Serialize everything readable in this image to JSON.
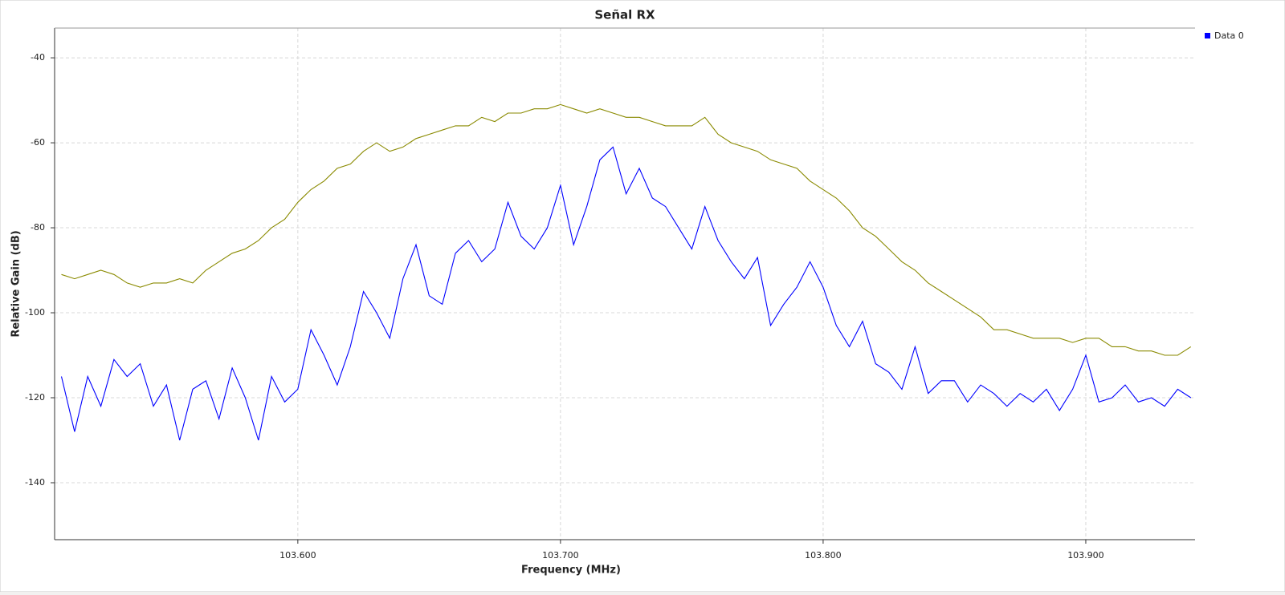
{
  "chart_data": {
    "type": "line",
    "title": "Señal RX",
    "x_label": "Frequency (MHz)",
    "y_label": "Relative Gain (dB)",
    "x": [
      103.51,
      103.515,
      103.52,
      103.525,
      103.53,
      103.535,
      103.54,
      103.545,
      103.55,
      103.555,
      103.56,
      103.565,
      103.57,
      103.575,
      103.58,
      103.585,
      103.59,
      103.595,
      103.6,
      103.605,
      103.61,
      103.615,
      103.62,
      103.625,
      103.63,
      103.635,
      103.64,
      103.645,
      103.65,
      103.655,
      103.66,
      103.665,
      103.67,
      103.675,
      103.68,
      103.685,
      103.69,
      103.695,
      103.7,
      103.705,
      103.71,
      103.715,
      103.72,
      103.725,
      103.73,
      103.735,
      103.74,
      103.745,
      103.75,
      103.755,
      103.76,
      103.765,
      103.77,
      103.775,
      103.78,
      103.785,
      103.79,
      103.795,
      103.8,
      103.805,
      103.81,
      103.815,
      103.82,
      103.825,
      103.83,
      103.835,
      103.84,
      103.845,
      103.85,
      103.855,
      103.86,
      103.865,
      103.87,
      103.875,
      103.88,
      103.885,
      103.89,
      103.895,
      103.9,
      103.905,
      103.91,
      103.915,
      103.92,
      103.925,
      103.93,
      103.935,
      103.94
    ],
    "series": [
      {
        "name": "Data 0",
        "color": "#0000ff",
        "values": [
          -115,
          -128,
          -115,
          -122,
          -111,
          -115,
          -112,
          -122,
          -117,
          -130,
          -118,
          -116,
          -125,
          -113,
          -120,
          -130,
          -115,
          -121,
          -118,
          -104,
          -110,
          -117,
          -108,
          -95,
          -100,
          -106,
          -92,
          -84,
          -96,
          -98,
          -86,
          -83,
          -88,
          -85,
          -74,
          -82,
          -85,
          -80,
          -70,
          -84,
          -75,
          -64,
          -61,
          -72,
          -66,
          -73,
          -75,
          -80,
          -85,
          -75,
          -83,
          -88,
          -92,
          -87,
          -103,
          -98,
          -94,
          -88,
          -94,
          -103,
          -108,
          -102,
          -112,
          -114,
          -118,
          -108,
          -119,
          -116,
          -116,
          -121,
          -117,
          -119,
          -122,
          -119,
          -121,
          -118,
          -123,
          -118,
          -110,
          -121,
          -120,
          -117,
          -121,
          -120,
          -122,
          -118,
          -120
        ]
      },
      {
        "color": "#8a8a00",
        "values": [
          -91,
          -92,
          -91,
          -90,
          -91,
          -93,
          -94,
          -93,
          -93,
          -92,
          -93,
          -90,
          -88,
          -86,
          -85,
          -83,
          -80,
          -78,
          -74,
          -71,
          -69,
          -66,
          -65,
          -62,
          -60,
          -62,
          -61,
          -59,
          -58,
          -57,
          -56,
          -56,
          -54,
          -55,
          -53,
          -53,
          -52,
          -52,
          -51,
          -52,
          -53,
          -52,
          -53,
          -54,
          -54,
          -55,
          -56,
          -56,
          -56,
          -54,
          -58,
          -60,
          -61,
          -62,
          -64,
          -65,
          -66,
          -69,
          -71,
          -73,
          -76,
          -80,
          -82,
          -85,
          -88,
          -90,
          -93,
          -95,
          -97,
          -99,
          -101,
          -104,
          -104,
          -105,
          -106,
          -106,
          -106,
          -107,
          -106,
          -106,
          -108,
          -108,
          -109,
          -109,
          -110,
          -110,
          -108
        ]
      }
    ],
    "xlim": [
      103.5074,
      103.9416
    ],
    "ylim": [
      -153.4,
      -33
    ],
    "xticks": [
      {
        "value": 103.6,
        "label": "103.600"
      },
      {
        "value": 103.7,
        "label": "103.700"
      },
      {
        "value": 103.8,
        "label": "103.800"
      },
      {
        "value": 103.9,
        "label": "103.900"
      }
    ],
    "yticks": [
      -40,
      -60,
      -80,
      -100,
      -120,
      -140
    ],
    "grid": true,
    "legend": "top-right"
  }
}
